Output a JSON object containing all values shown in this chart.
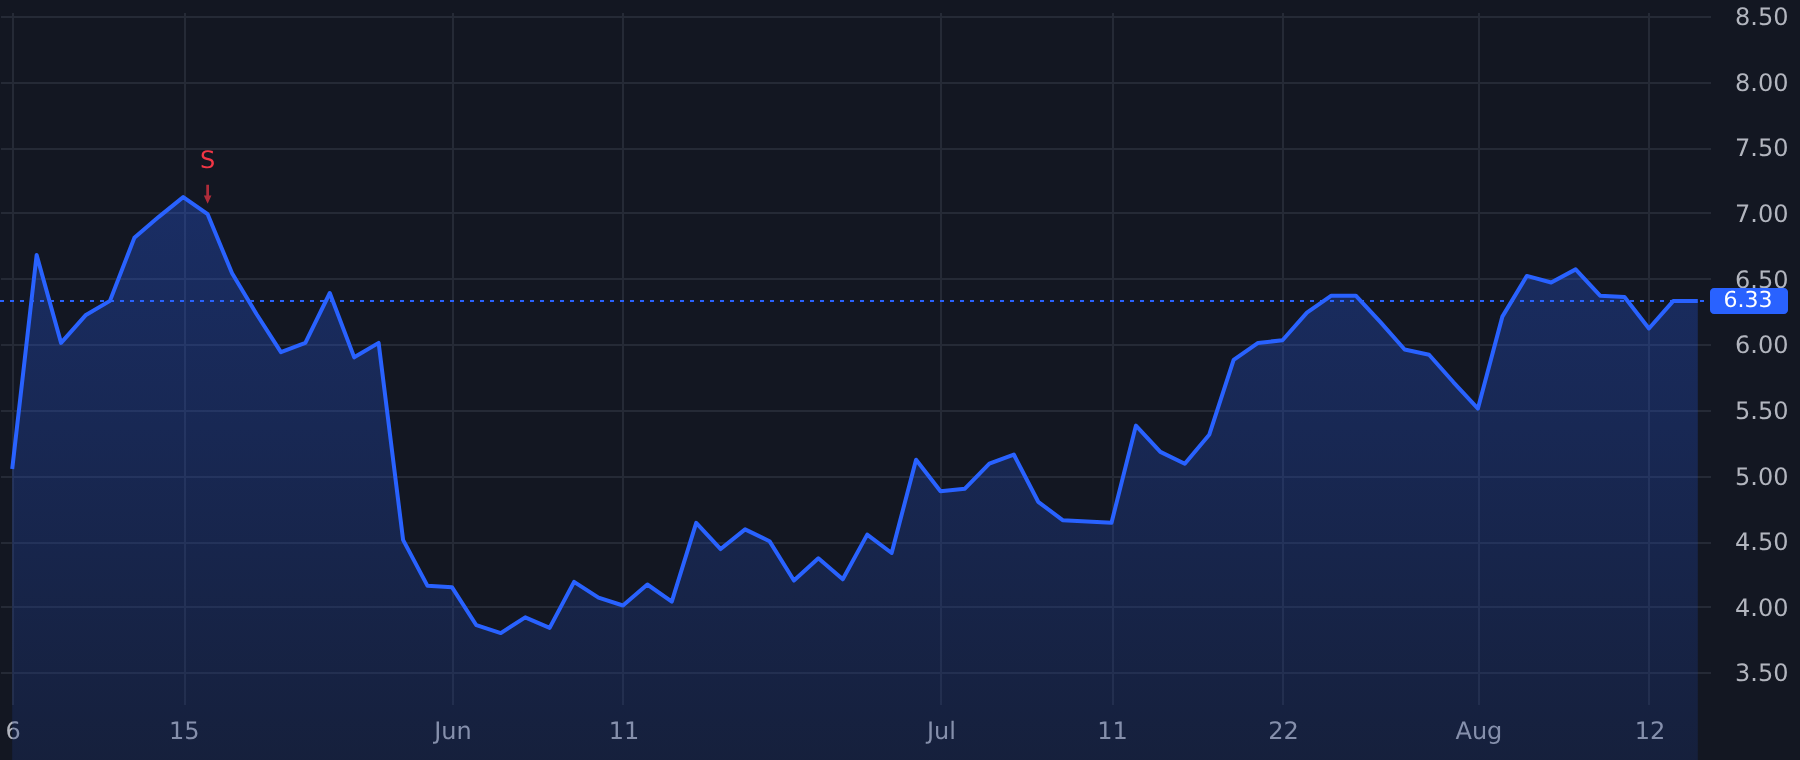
{
  "chart_data": {
    "type": "area",
    "categories": [
      "6",
      null,
      null,
      null,
      null,
      null,
      null,
      "15",
      null,
      null,
      null,
      null,
      null,
      null,
      null,
      null,
      null,
      null,
      "Jun",
      null,
      null,
      null,
      null,
      null,
      null,
      "11",
      null,
      null,
      null,
      null,
      null,
      null,
      null,
      null,
      null,
      null,
      null,
      null,
      "Jul",
      null,
      null,
      null,
      null,
      null,
      null,
      "11",
      null,
      null,
      null,
      null,
      null,
      null,
      "22",
      null,
      null,
      null,
      null,
      null,
      null,
      null,
      "Aug",
      null,
      null,
      null,
      null,
      null,
      null,
      "12",
      null,
      null
    ],
    "series": [
      {
        "color": "#2962ff",
        "values": [
          5.05,
          6.68,
          6.01,
          6.22,
          6.33,
          6.81,
          6.97,
          7.12,
          6.99,
          6.54,
          6.23,
          5.94,
          6.01,
          6.39,
          5.9,
          6.01,
          4.51,
          4.16,
          4.15,
          3.86,
          3.8,
          3.92,
          3.84,
          4.19,
          4.07,
          4.01,
          4.17,
          4.04,
          4.64,
          4.44,
          4.59,
          4.5,
          4.2,
          4.37,
          4.21,
          4.55,
          4.41,
          5.12,
          4.88,
          4.9,
          5.09,
          5.16,
          4.8,
          4.66,
          4.65,
          4.64,
          5.38,
          5.18,
          5.09,
          5.31,
          5.88,
          6.01,
          6.03,
          6.24,
          6.37,
          6.37,
          6.17,
          5.96,
          5.92,
          5.71,
          5.51,
          6.21,
          6.52,
          6.47,
          6.57,
          6.37,
          6.36,
          6.12,
          6.33,
          6.33
        ]
      }
    ],
    "ylim": [
      3.26,
      8.53
    ],
    "yticks": [
      {
        "value": 3.5,
        "label": "3.50"
      },
      {
        "value": 4,
        "label": "4.00"
      },
      {
        "value": 4.5,
        "label": "4.50"
      },
      {
        "value": 5,
        "label": "5.00"
      },
      {
        "value": 5.5,
        "label": "5.50"
      },
      {
        "value": 6,
        "label": "6.00"
      },
      {
        "value": 6.5,
        "label": "6.50"
      },
      {
        "value": 7,
        "label": "7.00"
      },
      {
        "value": 7.5,
        "label": "7.50"
      },
      {
        "value": 8,
        "label": "8.00"
      },
      {
        "value": 8.5,
        "label": "8.50"
      }
    ],
    "ref_lines": [
      {
        "axis": "y",
        "value": 6.33,
        "label": "6.33",
        "color": "#2962ff",
        "line_style": "dotted"
      }
    ],
    "annotations": [
      {
        "text": "S",
        "y": 6.99
      }
    ],
    "grid": true
  }
}
